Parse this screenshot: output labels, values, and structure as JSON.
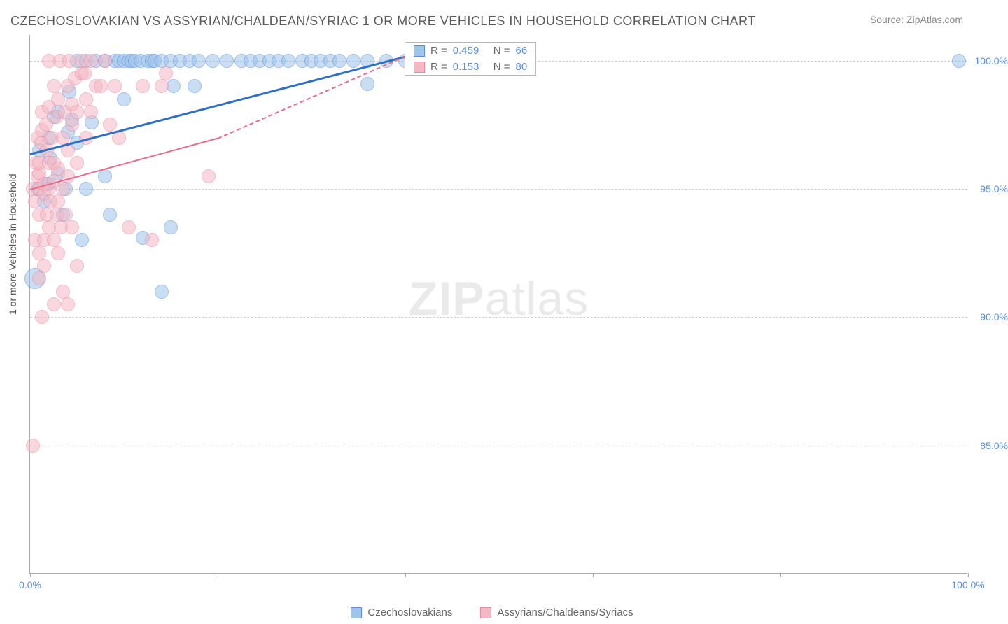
{
  "title": "CZECHOSLOVAKIAN VS ASSYRIAN/CHALDEAN/SYRIAC 1 OR MORE VEHICLES IN HOUSEHOLD CORRELATION CHART",
  "source_label": "Source: ZipAtlas.com",
  "ylabel": "1 or more Vehicles in Household",
  "watermark_zip": "ZIP",
  "watermark_atlas": "atlas",
  "chart": {
    "type": "scatter",
    "xlim": [
      0,
      100
    ],
    "ylim": [
      80,
      101
    ],
    "ytick_values": [
      85.0,
      90.0,
      95.0,
      100.0
    ],
    "ytick_labels": [
      "85.0%",
      "90.0%",
      "95.0%",
      "100.0%"
    ],
    "xtick_values": [
      0,
      20,
      40,
      60,
      80,
      100
    ],
    "xtick_labels": [
      "0.0%",
      "",
      "",
      "",
      "",
      "100.0%"
    ],
    "background_color": "#ffffff",
    "grid_color": "#cccccc",
    "axis_color": "#aaaaaa",
    "point_radius": 10,
    "point_opacity": 0.55,
    "series": [
      {
        "name": "Czechoslovakians",
        "color_fill": "#9ec4ea",
        "color_stroke": "#5b8fd8",
        "R": "0.459",
        "N": "66",
        "regression": {
          "x1": 0,
          "y1": 96.4,
          "x2": 40,
          "y2": 100.2,
          "color": "#2f6fc4",
          "width": 3,
          "dashed": false
        },
        "points": [
          {
            "x": 0.5,
            "y": 91.5,
            "r": 15
          },
          {
            "x": 0.8,
            "y": 95.0
          },
          {
            "x": 1.0,
            "y": 96.5
          },
          {
            "x": 1.5,
            "y": 94.5
          },
          {
            "x": 1.8,
            "y": 95.2
          },
          {
            "x": 2.0,
            "y": 97.0
          },
          {
            "x": 2.0,
            "y": 95.2
          },
          {
            "x": 2.2,
            "y": 96.2
          },
          {
            "x": 2.5,
            "y": 97.8
          },
          {
            "x": 3.0,
            "y": 98.0
          },
          {
            "x": 3.0,
            "y": 95.6
          },
          {
            "x": 3.5,
            "y": 94.0
          },
          {
            "x": 3.8,
            "y": 95.0
          },
          {
            "x": 4.0,
            "y": 97.2
          },
          {
            "x": 4.2,
            "y": 98.8
          },
          {
            "x": 4.5,
            "y": 97.7
          },
          {
            "x": 5.0,
            "y": 100.0
          },
          {
            "x": 5.0,
            "y": 96.8
          },
          {
            "x": 5.5,
            "y": 93.0
          },
          {
            "x": 6.0,
            "y": 100.0
          },
          {
            "x": 6.0,
            "y": 95.0
          },
          {
            "x": 6.6,
            "y": 97.6
          },
          {
            "x": 7.0,
            "y": 100.0
          },
          {
            "x": 8.0,
            "y": 100.0
          },
          {
            "x": 8.0,
            "y": 95.5
          },
          {
            "x": 8.5,
            "y": 94.0
          },
          {
            "x": 9.0,
            "y": 100.0
          },
          {
            "x": 9.5,
            "y": 100.0
          },
          {
            "x": 10.0,
            "y": 100.0
          },
          {
            "x": 10.0,
            "y": 98.5
          },
          {
            "x": 10.5,
            "y": 100.0
          },
          {
            "x": 10.8,
            "y": 100.0
          },
          {
            "x": 11.2,
            "y": 100.0
          },
          {
            "x": 11.8,
            "y": 100.0
          },
          {
            "x": 12.0,
            "y": 93.1
          },
          {
            "x": 12.5,
            "y": 100.0
          },
          {
            "x": 13.0,
            "y": 100.0
          },
          {
            "x": 13.3,
            "y": 100.0
          },
          {
            "x": 14.0,
            "y": 100.0
          },
          {
            "x": 14.0,
            "y": 91.0
          },
          {
            "x": 15.0,
            "y": 100.0
          },
          {
            "x": 15.0,
            "y": 93.5
          },
          {
            "x": 15.3,
            "y": 99.0
          },
          {
            "x": 16.0,
            "y": 100.0
          },
          {
            "x": 17.0,
            "y": 100.0
          },
          {
            "x": 17.5,
            "y": 99.0
          },
          {
            "x": 18.0,
            "y": 100.0
          },
          {
            "x": 19.5,
            "y": 100.0
          },
          {
            "x": 21.0,
            "y": 100.0
          },
          {
            "x": 22.5,
            "y": 100.0
          },
          {
            "x": 23.5,
            "y": 100.0
          },
          {
            "x": 24.5,
            "y": 100.0
          },
          {
            "x": 25.5,
            "y": 100.0
          },
          {
            "x": 26.5,
            "y": 100.0
          },
          {
            "x": 27.5,
            "y": 100.0
          },
          {
            "x": 29.0,
            "y": 100.0
          },
          {
            "x": 30.0,
            "y": 100.0
          },
          {
            "x": 31.0,
            "y": 100.0
          },
          {
            "x": 32.0,
            "y": 100.0
          },
          {
            "x": 33.0,
            "y": 100.0
          },
          {
            "x": 34.5,
            "y": 100.0
          },
          {
            "x": 36.0,
            "y": 99.1
          },
          {
            "x": 36.0,
            "y": 100.0
          },
          {
            "x": 38.0,
            "y": 100.0
          },
          {
            "x": 40.0,
            "y": 100.0
          },
          {
            "x": 99.0,
            "y": 100.0
          }
        ]
      },
      {
        "name": "Assyrians/Chaldeans/Syriacs",
        "color_fill": "#f4b8c5",
        "color_stroke": "#e98aa2",
        "R": "0.153",
        "N": "80",
        "regression": {
          "x1": 0,
          "y1": 95.0,
          "x2": 20,
          "y2": 97.0,
          "x3": 40,
          "y3": 100.2,
          "color": "#e76b8a",
          "width": 2,
          "dashed_after": 20
        },
        "points": [
          {
            "x": 0.3,
            "y": 85.0
          },
          {
            "x": 0.3,
            "y": 95.0
          },
          {
            "x": 0.5,
            "y": 93.0
          },
          {
            "x": 0.5,
            "y": 94.5
          },
          {
            "x": 0.7,
            "y": 96.0
          },
          {
            "x": 0.8,
            "y": 95.5
          },
          {
            "x": 0.8,
            "y": 97.0
          },
          {
            "x": 1.0,
            "y": 91.5
          },
          {
            "x": 1.0,
            "y": 92.5
          },
          {
            "x": 1.0,
            "y": 94.0
          },
          {
            "x": 1.0,
            "y": 95.0
          },
          {
            "x": 1.0,
            "y": 95.6
          },
          {
            "x": 1.0,
            "y": 96.0
          },
          {
            "x": 1.2,
            "y": 96.8
          },
          {
            "x": 1.3,
            "y": 97.3
          },
          {
            "x": 1.3,
            "y": 98.0
          },
          {
            "x": 1.3,
            "y": 90.0
          },
          {
            "x": 1.5,
            "y": 92.0
          },
          {
            "x": 1.5,
            "y": 93.0
          },
          {
            "x": 1.5,
            "y": 94.8
          },
          {
            "x": 1.5,
            "y": 95.2
          },
          {
            "x": 1.7,
            "y": 97.5
          },
          {
            "x": 1.8,
            "y": 94.0
          },
          {
            "x": 1.8,
            "y": 96.5
          },
          {
            "x": 2.0,
            "y": 93.5
          },
          {
            "x": 2.0,
            "y": 95.0
          },
          {
            "x": 2.0,
            "y": 96.0
          },
          {
            "x": 2.0,
            "y": 98.2
          },
          {
            "x": 2.0,
            "y": 100.0
          },
          {
            "x": 2.2,
            "y": 94.5
          },
          {
            "x": 2.3,
            "y": 97.0
          },
          {
            "x": 2.5,
            "y": 90.5
          },
          {
            "x": 2.5,
            "y": 93.0
          },
          {
            "x": 2.5,
            "y": 95.3
          },
          {
            "x": 2.5,
            "y": 96.0
          },
          {
            "x": 2.5,
            "y": 99.0
          },
          {
            "x": 2.8,
            "y": 94.0
          },
          {
            "x": 2.8,
            "y": 97.8
          },
          {
            "x": 3.0,
            "y": 92.5
          },
          {
            "x": 3.0,
            "y": 94.5
          },
          {
            "x": 3.0,
            "y": 95.8
          },
          {
            "x": 3.0,
            "y": 98.5
          },
          {
            "x": 3.2,
            "y": 100.0
          },
          {
            "x": 3.3,
            "y": 93.5
          },
          {
            "x": 3.5,
            "y": 91.0
          },
          {
            "x": 3.5,
            "y": 95.0
          },
          {
            "x": 3.5,
            "y": 97.0
          },
          {
            "x": 3.7,
            "y": 98.0
          },
          {
            "x": 3.8,
            "y": 94.0
          },
          {
            "x": 4.0,
            "y": 90.5
          },
          {
            "x": 4.0,
            "y": 95.5
          },
          {
            "x": 4.0,
            "y": 96.5
          },
          {
            "x": 4.0,
            "y": 99.0
          },
          {
            "x": 4.2,
            "y": 100.0
          },
          {
            "x": 4.5,
            "y": 93.5
          },
          {
            "x": 4.5,
            "y": 97.5
          },
          {
            "x": 4.5,
            "y": 98.3
          },
          {
            "x": 4.8,
            "y": 99.3
          },
          {
            "x": 5.0,
            "y": 92.0
          },
          {
            "x": 5.0,
            "y": 96.0
          },
          {
            "x": 5.0,
            "y": 98.0
          },
          {
            "x": 5.5,
            "y": 99.5
          },
          {
            "x": 5.5,
            "y": 100.0
          },
          {
            "x": 5.8,
            "y": 99.5
          },
          {
            "x": 6.0,
            "y": 97.0
          },
          {
            "x": 6.0,
            "y": 98.5
          },
          {
            "x": 6.5,
            "y": 98.0
          },
          {
            "x": 6.5,
            "y": 100.0
          },
          {
            "x": 7.0,
            "y": 99.0
          },
          {
            "x": 7.5,
            "y": 99.0
          },
          {
            "x": 8.0,
            "y": 100.0
          },
          {
            "x": 8.5,
            "y": 97.5
          },
          {
            "x": 9.0,
            "y": 99.0
          },
          {
            "x": 9.5,
            "y": 97.0
          },
          {
            "x": 10.5,
            "y": 93.5
          },
          {
            "x": 12.0,
            "y": 99.0
          },
          {
            "x": 13.0,
            "y": 93.0
          },
          {
            "x": 14.0,
            "y": 99.0
          },
          {
            "x": 14.5,
            "y": 99.5
          },
          {
            "x": 19.0,
            "y": 95.5
          }
        ]
      }
    ]
  },
  "legend_top": {
    "R_label": "R =",
    "N_label": "N ="
  },
  "legend_bottom": [
    {
      "label": "Czechoslovakians",
      "fill": "#9ec4ea",
      "stroke": "#5b8fd8"
    },
    {
      "label": "Assyrians/Chaldeans/Syriacs",
      "fill": "#f4b8c5",
      "stroke": "#e98aa2"
    }
  ]
}
